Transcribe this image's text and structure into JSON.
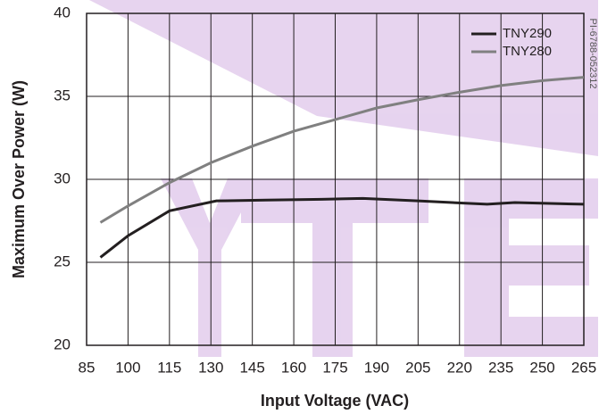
{
  "chart_data": {
    "type": "line",
    "xlabel": "Input Voltage (VAC)",
    "ylabel": "Maximum Over Power (W)",
    "note": "PI-6788-052312",
    "xlim": [
      85,
      265
    ],
    "xticks": [
      85,
      100,
      115,
      130,
      145,
      160,
      175,
      190,
      205,
      220,
      235,
      250,
      265
    ],
    "ylim": [
      20,
      40
    ],
    "yticks": [
      20,
      25,
      30,
      35,
      40
    ],
    "grid": true,
    "legend": "upper right",
    "series": [
      {
        "name": "TNY290",
        "color": "#231f20",
        "x": [
          90,
          100,
          115,
          132,
          150,
          170,
          185,
          205,
          230,
          240,
          265
        ],
        "values": [
          25.3,
          26.6,
          28.1,
          28.7,
          28.75,
          28.8,
          28.85,
          28.7,
          28.5,
          28.6,
          28.5
        ]
      },
      {
        "name": "TNY280",
        "color": "#808080",
        "x": [
          90,
          100,
          115,
          130,
          145,
          160,
          175,
          190,
          205,
          220,
          235,
          250,
          265
        ],
        "values": [
          27.4,
          28.4,
          29.8,
          31.0,
          32.0,
          32.9,
          33.6,
          34.3,
          34.8,
          35.25,
          35.65,
          35.95,
          36.15
        ]
      }
    ]
  }
}
